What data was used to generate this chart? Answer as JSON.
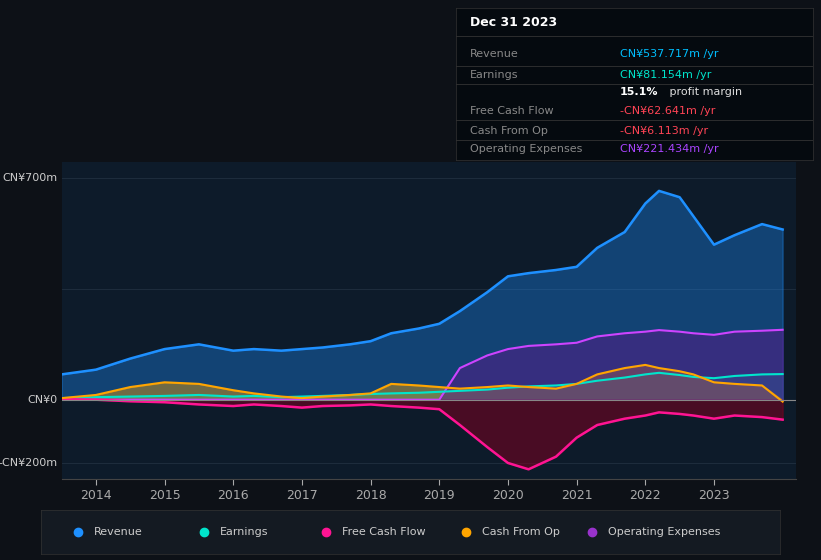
{
  "background_color": "#0d1117",
  "plot_bg_color": "#0d1b2a",
  "ylim": [
    -250,
    750
  ],
  "xlabel_years": [
    2014,
    2015,
    2016,
    2017,
    2018,
    2019,
    2020,
    2021,
    2022,
    2023
  ],
  "legend_items": [
    {
      "label": "Revenue",
      "color": "#1e90ff"
    },
    {
      "label": "Earnings",
      "color": "#00e5cc"
    },
    {
      "label": "Free Cash Flow",
      "color": "#ff1493"
    },
    {
      "label": "Cash From Op",
      "color": "#ffa500"
    },
    {
      "label": "Operating Expenses",
      "color": "#9932cc"
    }
  ],
  "series": {
    "x": [
      2013.5,
      2014.0,
      2014.5,
      2015.0,
      2015.5,
      2016.0,
      2016.3,
      2016.7,
      2017.0,
      2017.3,
      2017.7,
      2018.0,
      2018.3,
      2018.7,
      2019.0,
      2019.3,
      2019.7,
      2020.0,
      2020.3,
      2020.7,
      2021.0,
      2021.3,
      2021.7,
      2022.0,
      2022.2,
      2022.5,
      2022.7,
      2023.0,
      2023.3,
      2023.7,
      2024.0
    ],
    "revenue": [
      80,
      95,
      130,
      160,
      175,
      155,
      160,
      155,
      160,
      165,
      175,
      185,
      210,
      225,
      240,
      280,
      340,
      390,
      400,
      410,
      420,
      480,
      530,
      620,
      660,
      640,
      580,
      490,
      520,
      555,
      538
    ],
    "earnings": [
      5,
      8,
      10,
      12,
      15,
      10,
      12,
      8,
      10,
      12,
      15,
      18,
      20,
      22,
      25,
      28,
      32,
      38,
      42,
      45,
      50,
      60,
      70,
      80,
      85,
      78,
      72,
      68,
      75,
      80,
      81
    ],
    "free_cash_flow": [
      2,
      0,
      -5,
      -8,
      -15,
      -20,
      -15,
      -20,
      -25,
      -20,
      -18,
      -15,
      -20,
      -25,
      -30,
      -80,
      -150,
      -200,
      -220,
      -180,
      -120,
      -80,
      -60,
      -50,
      -40,
      -45,
      -50,
      -60,
      -50,
      -55,
      -63
    ],
    "cash_from_op": [
      5,
      15,
      40,
      55,
      50,
      30,
      20,
      10,
      5,
      10,
      15,
      20,
      50,
      45,
      40,
      35,
      40,
      45,
      40,
      35,
      50,
      80,
      100,
      110,
      100,
      90,
      80,
      55,
      50,
      45,
      -6
    ],
    "operating_expenses": [
      0,
      0,
      0,
      0,
      0,
      0,
      0,
      0,
      0,
      0,
      0,
      0,
      0,
      0,
      0,
      100,
      140,
      160,
      170,
      175,
      180,
      200,
      210,
      215,
      220,
      215,
      210,
      205,
      215,
      218,
      221
    ]
  },
  "info_box": {
    "date": "Dec 31 2023",
    "rows": [
      {
        "label": "Revenue",
        "value": "CN¥537.717m /yr",
        "value_color": "#00bfff"
      },
      {
        "label": "Earnings",
        "value": "CN¥81.154m /yr",
        "value_color": "#00e5cc"
      },
      {
        "label": "",
        "value": "15.1% profit margin",
        "value_color": "#ffffff",
        "bold_prefix": "15.1%"
      },
      {
        "label": "Free Cash Flow",
        "value": "-CN¥62.641m /yr",
        "value_color": "#ff4455"
      },
      {
        "label": "Cash From Op",
        "value": "-CN¥6.113m /yr",
        "value_color": "#ff4455"
      },
      {
        "label": "Operating Expenses",
        "value": "CN¥221.434m /yr",
        "value_color": "#aa44ff"
      }
    ]
  }
}
